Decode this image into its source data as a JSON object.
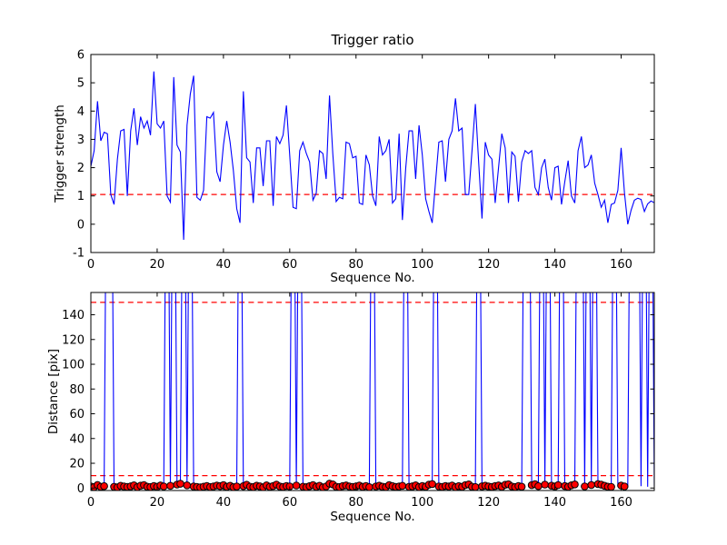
{
  "figure": {
    "background": "#ffffff",
    "frame_color": "#000000"
  },
  "colors": {
    "line": "#0000ff",
    "threshold": "#ff0000",
    "marker_face": "#ff0000",
    "marker_edge": "#000000",
    "tick_text": "#000000"
  },
  "chart_data": [
    {
      "type": "line",
      "title": "Trigger ratio",
      "xlabel": "Sequence No.",
      "ylabel": "Trigger strength",
      "xlim": [
        0,
        170
      ],
      "ylim": [
        -1,
        6
      ],
      "xticks": [
        0,
        20,
        40,
        60,
        80,
        100,
        120,
        140,
        160
      ],
      "yticks": [
        -1,
        0,
        1,
        2,
        3,
        4,
        5,
        6
      ],
      "grid": false,
      "legend": "none",
      "threshold_lines": [
        {
          "y": 1.05,
          "style": "dashed",
          "color": "#ff0000"
        }
      ],
      "series": [
        {
          "name": "trigger-strength",
          "color": "#0000ff",
          "x_start": 0,
          "x_step": 1,
          "values": [
            2.05,
            2.6,
            4.35,
            2.95,
            3.25,
            3.2,
            1.05,
            0.7,
            2.3,
            3.3,
            3.35,
            1.0,
            3.3,
            4.1,
            2.8,
            3.8,
            3.4,
            3.65,
            3.15,
            5.4,
            3.55,
            3.4,
            3.65,
            1.0,
            0.78,
            5.2,
            2.8,
            2.55,
            -0.55,
            3.5,
            4.6,
            5.25,
            0.95,
            0.85,
            1.2,
            3.8,
            3.75,
            3.95,
            1.85,
            1.5,
            2.8,
            3.65,
            2.9,
            1.9,
            0.55,
            0.05,
            4.7,
            2.35,
            2.2,
            0.75,
            2.7,
            2.7,
            1.35,
            2.95,
            2.95,
            0.65,
            3.1,
            2.85,
            3.15,
            4.2,
            2.45,
            0.6,
            0.55,
            2.6,
            2.9,
            2.5,
            2.2,
            0.85,
            1.1,
            2.6,
            2.5,
            1.6,
            4.55,
            2.5,
            0.8,
            0.95,
            0.9,
            2.9,
            2.85,
            2.35,
            2.4,
            0.75,
            0.7,
            2.45,
            2.1,
            1.0,
            0.65,
            3.1,
            2.45,
            2.6,
            3.0,
            0.75,
            0.9,
            3.2,
            0.15,
            2.0,
            3.3,
            3.3,
            1.6,
            3.5,
            2.45,
            0.9,
            0.45,
            0.05,
            1.5,
            2.9,
            2.95,
            1.5,
            3.0,
            3.3,
            4.45,
            3.3,
            3.4,
            1.05,
            1.05,
            2.6,
            4.25,
            2.2,
            0.2,
            2.9,
            2.45,
            2.3,
            0.75,
            2.0,
            3.2,
            2.7,
            0.75,
            2.55,
            2.4,
            0.8,
            2.2,
            2.6,
            2.5,
            2.6,
            1.3,
            1.05,
            2.0,
            2.3,
            1.3,
            0.85,
            2.0,
            2.05,
            0.7,
            1.5,
            2.25,
            1.0,
            0.75,
            2.6,
            3.1,
            2.0,
            2.1,
            2.45,
            1.45,
            1.05,
            0.6,
            0.85,
            0.05,
            0.7,
            0.75,
            1.2,
            2.7,
            1.1,
            0.0,
            0.5,
            0.85,
            0.92,
            0.88,
            0.45,
            0.72,
            0.82,
            0.76
          ]
        }
      ]
    },
    {
      "type": "line",
      "title": "",
      "xlabel": "Sequence No.",
      "ylabel": "Distance [pix]",
      "xlim": [
        0,
        170
      ],
      "ylim": [
        -2,
        158
      ],
      "xticks": [
        0,
        20,
        40,
        60,
        80,
        100,
        120,
        140,
        160
      ],
      "yticks": [
        0,
        20,
        40,
        60,
        80,
        100,
        120,
        140
      ],
      "grid": false,
      "legend": "none",
      "threshold_lines": [
        {
          "y": 150,
          "style": "dashed",
          "color": "#ff0000"
        },
        {
          "y": 10,
          "style": "dashed",
          "color": "#ff0000"
        }
      ],
      "series": [
        {
          "name": "distance",
          "color": "#0000ff",
          "x_start": 0,
          "x_step": 1,
          "spike_value": 400,
          "spike_indices": [
            5,
            6,
            23,
            25,
            28,
            30,
            45,
            61,
            63,
            85,
            95,
            104,
            117,
            131,
            132,
            136,
            138,
            142,
            147,
            148,
            150,
            152,
            158,
            163,
            164,
            165,
            167,
            169
          ],
          "values": [
            1.2,
            0.8,
            2.5,
            1.0,
            1.5,
            400,
            400,
            1.0,
            0.6,
            1.8,
            1.2,
            0.9,
            1.4,
            2.2,
            0.7,
            1.9,
            2.4,
            1.1,
            0.8,
            1.6,
            1.0,
            2.1,
            1.3,
            400,
            1.8,
            400,
            2.8,
            3.4,
            400,
            2.2,
            400,
            1.2,
            0.9,
            0.5,
            1.1,
            1.7,
            0.8,
            1.3,
            2.0,
            1.5,
            2.3,
            1.0,
            1.8,
            0.7,
            1.2,
            400,
            1.5,
            2.6,
            1.1,
            0.8,
            1.9,
            1.4,
            0.6,
            2.2,
            1.0,
            1.6,
            2.8,
            1.2,
            0.9,
            1.7,
            1.3,
            400,
            2.0,
            400,
            1.1,
            0.7,
            1.5,
            2.4,
            1.0,
            1.8,
            0.6,
            1.3,
            3.6,
            2.9,
            1.1,
            0.8,
            1.6,
            2.1,
            1.2,
            0.9,
            1.4,
            2.0,
            1.0,
            1.7,
            0.7,
            400,
            1.3,
            1.9,
            1.1,
            0.8,
            2.3,
            1.5,
            0.9,
            1.2,
            1.8,
            400,
            1.0,
            1.4,
            2.2,
            0.8,
            1.6,
            1.1,
            2.7,
            3.2,
            400,
            1.3,
            0.9,
            1.7,
            1.2,
            2.0,
            0.7,
            1.5,
            1.0,
            2.4,
            2.9,
            1.1,
            0.8,
            400,
            1.4,
            1.9,
            1.2,
            0.9,
            1.6,
            2.1,
            1.0,
            2.6,
            3.0,
            1.3,
            0.8,
            1.7,
            1.1,
            400,
            400,
            2.3,
            3.1,
            1.5,
            400,
            2.8,
            400,
            1.9,
            1.2,
            2.4,
            400,
            1.6,
            1.0,
            2.2,
            2.9,
            400,
            400,
            1.3,
            400,
            2.5,
            400,
            3.2,
            2.7,
            1.8,
            1.1,
            0.9,
            400,
            1.4,
            2.0,
            1.2,
            0.8,
            400,
            400,
            400,
            1.5,
            400,
            1.0,
            400,
            1.2
          ],
          "markers": {
            "shape": "circle",
            "face": "#ff0000",
            "edge": "#000000",
            "radius": 3.8,
            "show_below_value": 10,
            "skip_indices": [
              159,
              162,
              166,
              168,
              170
            ]
          }
        }
      ]
    }
  ]
}
